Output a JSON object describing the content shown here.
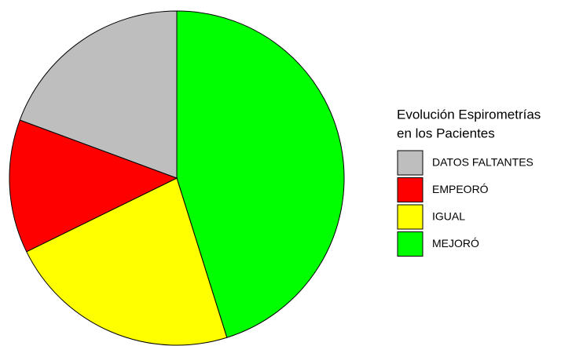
{
  "chart_data": {
    "type": "pie",
    "legend_title": [
      "Evolución Espirometrías",
      "en los Pacientes"
    ],
    "categories": [
      "DATOS FALTANTES",
      "EMPEORÓ",
      "IGUAL",
      "MEJORÓ"
    ],
    "values": [
      6,
      4,
      7,
      14
    ],
    "colors": [
      "#bebebe",
      "#ff0000",
      "#ffff00",
      "#00ff00"
    ],
    "legend": "right"
  }
}
